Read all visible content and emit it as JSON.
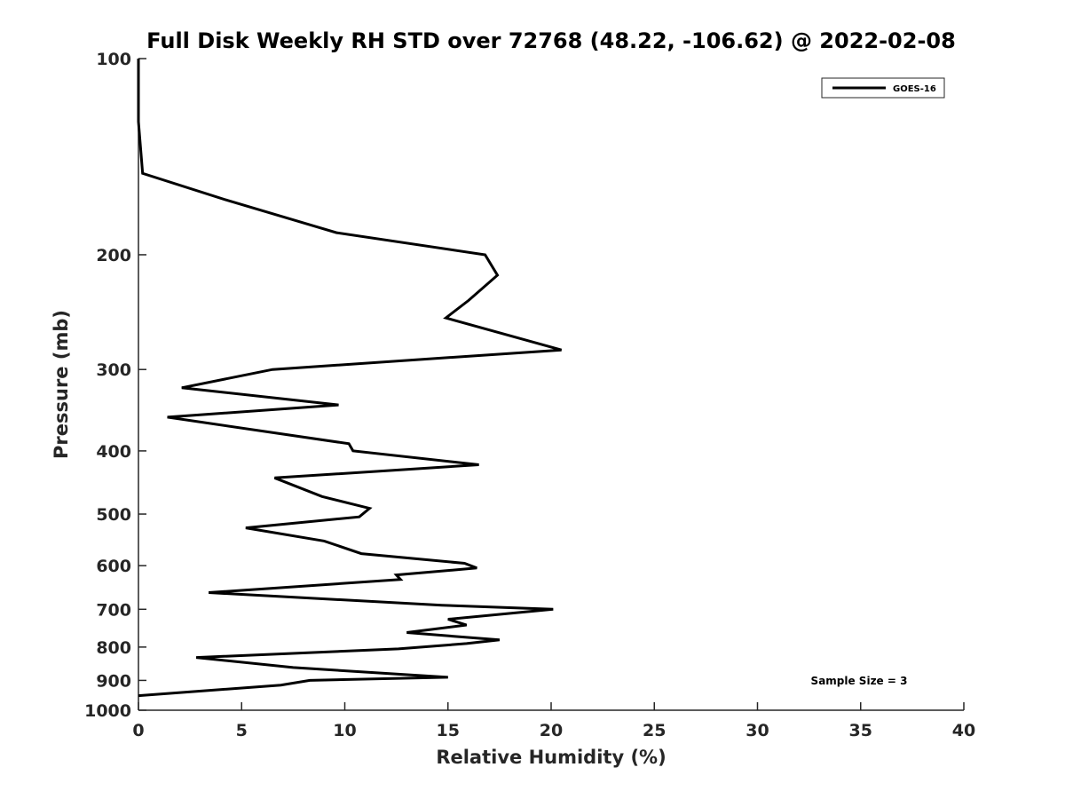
{
  "chart_data": {
    "type": "line",
    "title": "Full Disk Weekly RH STD over 72768 (48.22, -106.62) @ 2022-02-08",
    "xlabel": "Relative Humidity (%)",
    "ylabel": "Pressure (mb)",
    "xlim": [
      0,
      40
    ],
    "ylim": [
      1000,
      100
    ],
    "y_scale": "log",
    "x_ticks": [
      0,
      5,
      10,
      15,
      20,
      25,
      30,
      35,
      40
    ],
    "x_tick_labels": [
      "0",
      "5",
      "10",
      "15",
      "20",
      "25",
      "30",
      "35",
      "40"
    ],
    "y_ticks": [
      100,
      200,
      300,
      400,
      500,
      600,
      700,
      800,
      900,
      1000
    ],
    "y_tick_labels": [
      "100",
      "200",
      "300",
      "400",
      "500",
      "600",
      "700",
      "800",
      "900",
      "1000"
    ],
    "grid": false,
    "legend_position": "top-right",
    "annotation": "Sample Size = 3",
    "series": [
      {
        "name": "GOES-16",
        "color": "#000000",
        "x": [
          0.0,
          0.0,
          0.2,
          4.3,
          9.6,
          16.8,
          17.4,
          16.0,
          14.9,
          20.5,
          6.5,
          2.1,
          9.7,
          1.4,
          10.2,
          10.4,
          16.5,
          6.6,
          8.9,
          11.2,
          10.7,
          5.2,
          9.0,
          10.8,
          15.8,
          16.4,
          12.5,
          12.7,
          3.4,
          14.7,
          20.1,
          15.0,
          15.9,
          13.0,
          17.5,
          15.9,
          12.6,
          2.8,
          7.5,
          15.0,
          8.3,
          6.9,
          0.0
        ],
        "y": [
          100,
          125,
          150,
          165,
          185,
          200,
          215,
          235,
          250,
          280,
          300,
          320,
          340,
          355,
          390,
          400,
          420,
          440,
          470,
          490,
          505,
          525,
          550,
          575,
          595,
          605,
          620,
          630,
          660,
          690,
          700,
          725,
          740,
          760,
          780,
          790,
          805,
          830,
          860,
          890,
          900,
          915,
          950
        ]
      }
    ]
  }
}
